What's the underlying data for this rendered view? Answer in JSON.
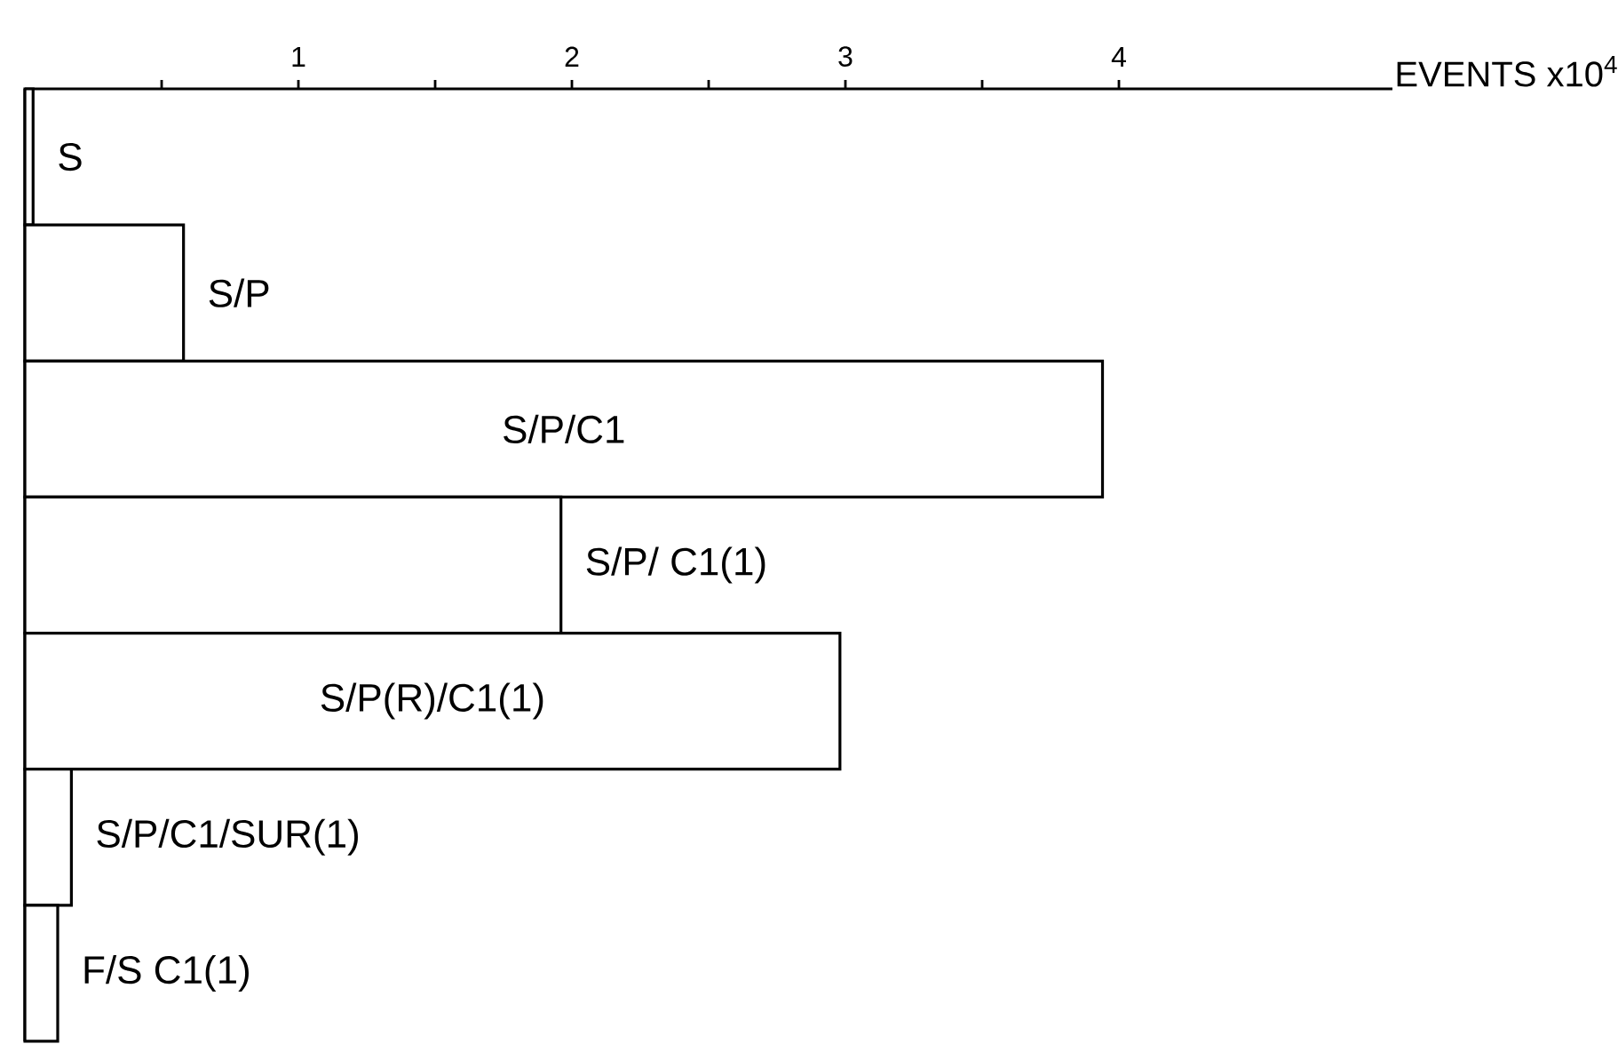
{
  "chart_data": {
    "type": "bar",
    "orientation": "horizontal",
    "xlabel": "EVENTS x10$^{4}$",
    "categories": [
      "S",
      "S/P",
      "S/P/C1",
      "S/P/ C1(1)",
      "S/P(R)/C1(1)",
      "S/P/C1/SUR(1)",
      "F/S C1(1)"
    ],
    "values": [
      0.03,
      0.58,
      3.94,
      1.96,
      2.98,
      0.17,
      0.12
    ],
    "color": "#ffffff",
    "xlim": [
      0,
      5
    ],
    "xticks": [
      {
        "value": 0.5,
        "label": null
      },
      1,
      {
        "value": 1.5,
        "label": null
      },
      2,
      {
        "value": 2.5,
        "label": null
      },
      3,
      {
        "value": 3.5,
        "label": null
      },
      4
    ]
  }
}
